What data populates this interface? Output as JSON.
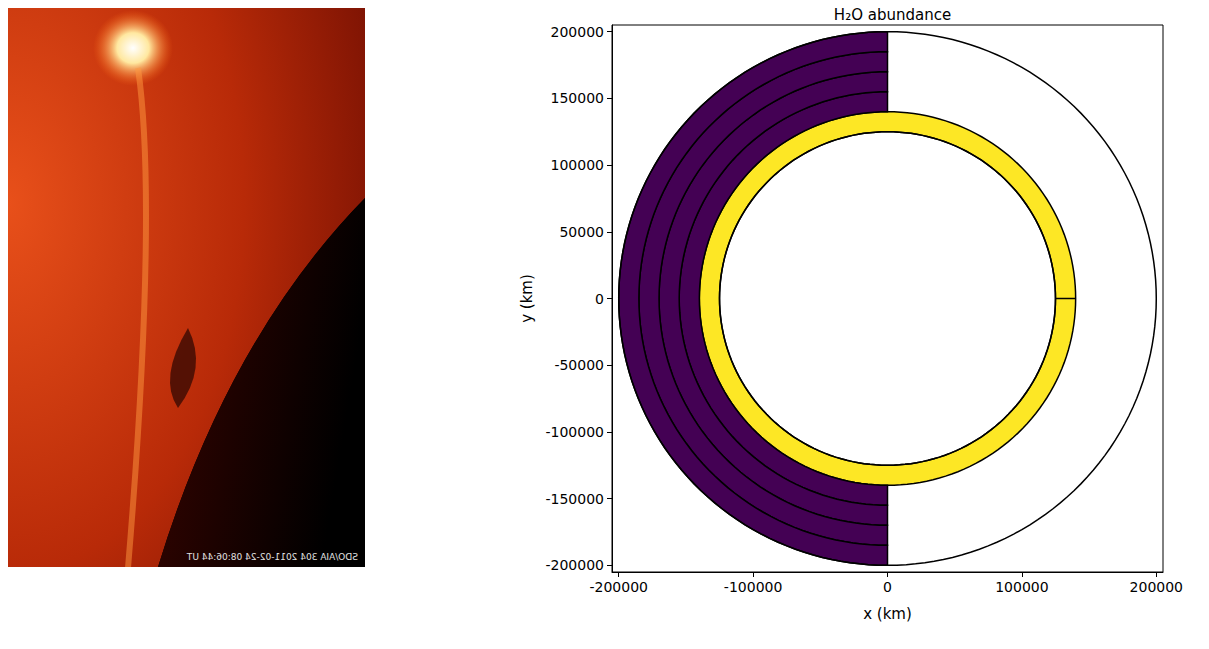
{
  "chart_data": {
    "type": "rings",
    "title": "H₂O abundance",
    "x_label": "x (km)",
    "y_label": "y (km)",
    "xlim": [
      -205000,
      205000
    ],
    "ylim": [
      -205000,
      205000
    ],
    "xticks": [
      -200000,
      -100000,
      0,
      100000,
      200000
    ],
    "yticks": [
      -200000,
      -150000,
      -100000,
      -50000,
      0,
      50000,
      100000,
      150000,
      200000
    ],
    "grid": false,
    "rings": [
      {
        "r": [
          125000,
          140000
        ],
        "theta": [
          0,
          360
        ],
        "color": "#fde725"
      },
      {
        "r": [
          140000,
          155000
        ],
        "theta": [
          90,
          270
        ],
        "color": "#440154"
      },
      {
        "r": [
          155000,
          170000
        ],
        "theta": [
          90,
          270
        ],
        "color": "#440154"
      },
      {
        "r": [
          170000,
          185000
        ],
        "theta": [
          90,
          270
        ],
        "color": "#440154"
      },
      {
        "r": [
          185000,
          200000
        ],
        "theta": [
          90,
          270
        ],
        "color": "#440154"
      }
    ],
    "circles": [
      125000,
      200000
    ]
  },
  "image_panel": {
    "caption": "SDO/AIA 304   2011-02-24 08:06:44 UT"
  }
}
